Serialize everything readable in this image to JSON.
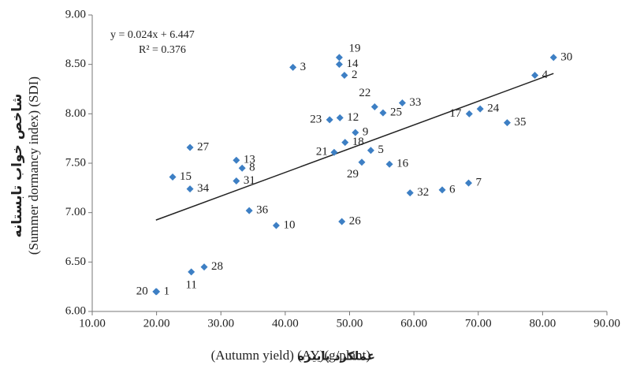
{
  "chart_data": {
    "type": "scatter",
    "ylabel_fa": "شاخص خواب تابستانه",
    "ylabel_en": "(Summer dormancy index) (SDI)",
    "xlabel_en": "(Autumn yield) (AY)(g/plant)",
    "xlabel_fa": "عملکرد پاییزه",
    "color": "#3d7fc4",
    "labels": [
      "1",
      "2",
      "3",
      "4",
      "5",
      "6",
      "7",
      "8",
      "9",
      "10",
      "11",
      "12",
      "13",
      "14",
      "15",
      "16",
      "17",
      "18",
      "19",
      "20",
      "21",
      "22",
      "23",
      "24",
      "25",
      "26",
      "27",
      "28",
      "29",
      "30",
      "31",
      "32",
      "33",
      "34",
      "35",
      "36"
    ],
    "x": [
      20.0,
      49.2,
      41.2,
      78.8,
      53.3,
      64.4,
      68.5,
      33.3,
      50.9,
      38.6,
      25.4,
      48.5,
      32.4,
      48.4,
      22.5,
      56.2,
      68.6,
      49.3,
      48.4,
      19.9,
      47.6,
      53.9,
      46.9,
      70.3,
      55.2,
      48.8,
      25.2,
      27.4,
      51.9,
      81.7,
      32.4,
      59.4,
      58.2,
      25.2,
      74.5,
      34.4
    ],
    "y": [
      6.2,
      8.39,
      8.47,
      8.39,
      7.63,
      7.23,
      7.3,
      7.45,
      7.81,
      6.87,
      6.4,
      7.96,
      7.53,
      8.5,
      7.36,
      7.49,
      8.0,
      7.71,
      8.57,
      6.2,
      7.61,
      8.07,
      7.94,
      8.05,
      8.01,
      6.91,
      7.66,
      6.45,
      7.51,
      8.57,
      7.32,
      7.2,
      8.11,
      7.24,
      7.91,
      7.02
    ],
    "trendline": {
      "equation": "y = 0.024x + 6.447",
      "r2": "R² = 0.376",
      "slope": 0.024,
      "intercept": 6.447
    },
    "xlim": [
      10,
      90
    ],
    "xticks": [
      {
        "value": 10,
        "label": "10.00"
      },
      {
        "value": 20,
        "label": "20.00"
      },
      {
        "value": 30,
        "label": "30.00"
      },
      {
        "value": 40,
        "label": "40.00"
      },
      {
        "value": 50,
        "label": "50.00"
      },
      {
        "value": 60,
        "label": "60.00"
      },
      {
        "value": 70,
        "label": "70.00"
      },
      {
        "value": 80,
        "label": "80.00"
      },
      {
        "value": 90,
        "label": "90.00"
      }
    ],
    "ylim": [
      6,
      9
    ],
    "yticks": [
      {
        "value": 6,
        "label": "6.00"
      },
      {
        "value": 6.5,
        "label": "6.50"
      },
      {
        "value": 7,
        "label": "7.00"
      },
      {
        "value": 7.5,
        "label": "7.50"
      },
      {
        "value": 8,
        "label": "8.00"
      },
      {
        "value": 8.5,
        "label": "8.50"
      },
      {
        "value": 9,
        "label": "9.00"
      }
    ]
  }
}
